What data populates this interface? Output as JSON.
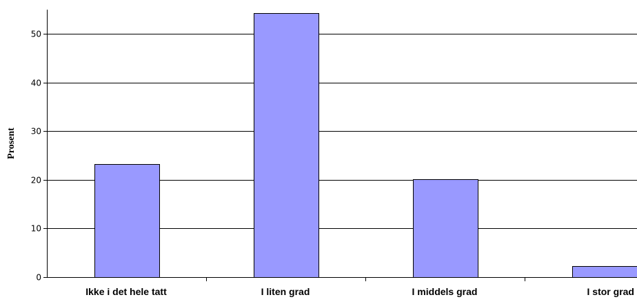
{
  "chart_data": {
    "type": "bar",
    "title": "",
    "xlabel": "",
    "ylabel": "Prosent",
    "categories": [
      "Ikke i det hele tatt",
      "I liten grad",
      "I middels grad",
      "I stor grad"
    ],
    "values": [
      23.3,
      54.3,
      20.1,
      2.2
    ],
    "ylim": [
      0,
      55
    ],
    "yticks": [
      0,
      10,
      20,
      30,
      40,
      50
    ],
    "grid": true,
    "legend": "none",
    "colors": {
      "bar_fill": "#9999ff",
      "bar_stroke": "#000000",
      "grid": "#000000",
      "background": "#ffffff"
    }
  }
}
